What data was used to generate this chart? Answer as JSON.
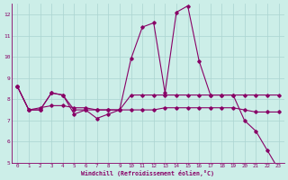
{
  "xlabel": "Windchill (Refroidissement éolien,°C)",
  "background_color": "#cceee8",
  "grid_color": "#aad4d0",
  "line_color": "#880066",
  "x_hours": [
    0,
    1,
    2,
    3,
    4,
    5,
    6,
    7,
    8,
    9,
    10,
    11,
    12,
    13,
    14,
    15,
    16,
    17,
    18,
    19,
    20,
    21,
    22,
    23
  ],
  "series1": [
    8.6,
    7.5,
    7.5,
    8.3,
    8.2,
    7.3,
    7.5,
    7.1,
    7.3,
    7.5,
    9.9,
    11.4,
    11.6,
    8.3,
    12.1,
    12.4,
    9.8,
    8.2,
    8.2,
    8.2,
    7.0,
    6.5,
    5.6,
    4.7
  ],
  "series2": [
    8.6,
    7.5,
    7.6,
    7.7,
    7.7,
    7.6,
    7.6,
    7.5,
    7.5,
    7.5,
    7.5,
    7.5,
    7.5,
    7.6,
    7.6,
    7.6,
    7.6,
    7.6,
    7.6,
    7.6,
    7.5,
    7.4,
    7.4,
    7.4
  ],
  "series3": [
    8.6,
    7.5,
    7.5,
    8.3,
    8.2,
    7.5,
    7.5,
    7.5,
    7.5,
    7.5,
    8.2,
    8.2,
    8.2,
    8.2,
    8.2,
    8.2,
    8.2,
    8.2,
    8.2,
    8.2,
    8.2,
    8.2,
    8.2,
    8.2
  ],
  "ylim": [
    5,
    12.5
  ],
  "yticks": [
    5,
    6,
    7,
    8,
    9,
    10,
    11,
    12
  ],
  "xlim_min": -0.5,
  "xlim_max": 23.5
}
